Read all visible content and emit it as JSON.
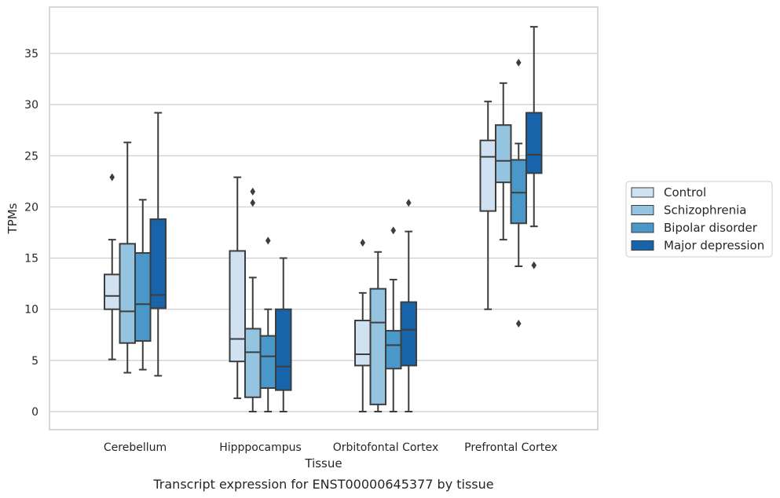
{
  "chart_data": {
    "type": "box",
    "caption": "Transcript expression for ENST00000645377 by tissue",
    "xlabel": "Tissue",
    "ylabel": "TPMs",
    "ylim": [
      -1.8,
      39.5
    ],
    "yticks": [
      0,
      5,
      10,
      15,
      20,
      25,
      30,
      35
    ],
    "grid": true,
    "legend_position": "right",
    "categories": [
      "Cerebellum",
      "Hipppocampus",
      "Orbitofontal Cortex",
      "Prefrontal Cortex"
    ],
    "series": [
      {
        "name": "Control",
        "color": "#d0e1f2",
        "boxes": [
          {
            "whisker_low": 5.1,
            "q1": 10.0,
            "median": 11.3,
            "q3": 13.4,
            "whisker_high": 16.8,
            "outliers": [
              22.9
            ]
          },
          {
            "whisker_low": 1.3,
            "q1": 4.9,
            "median": 7.1,
            "q3": 15.7,
            "whisker_high": 22.9,
            "outliers": []
          },
          {
            "whisker_low": 0.0,
            "q1": 4.5,
            "median": 5.6,
            "q3": 8.9,
            "whisker_high": 11.6,
            "outliers": [
              16.5
            ]
          },
          {
            "whisker_low": 10.0,
            "q1": 19.6,
            "median": 24.9,
            "q3": 26.5,
            "whisker_high": 30.3,
            "outliers": []
          }
        ]
      },
      {
        "name": "Schizophrenia",
        "color": "#94c4df",
        "boxes": [
          {
            "whisker_low": 3.8,
            "q1": 6.7,
            "median": 9.8,
            "q3": 16.4,
            "whisker_high": 26.3,
            "outliers": []
          },
          {
            "whisker_low": 0.0,
            "q1": 1.4,
            "median": 5.8,
            "q3": 8.1,
            "whisker_high": 13.1,
            "outliers": [
              20.4,
              21.5
            ]
          },
          {
            "whisker_low": 0.0,
            "q1": 0.7,
            "median": 8.7,
            "q3": 12.0,
            "whisker_high": 15.6,
            "outliers": []
          },
          {
            "whisker_low": 16.8,
            "q1": 22.4,
            "median": 24.5,
            "q3": 28.0,
            "whisker_high": 32.1,
            "outliers": []
          }
        ]
      },
      {
        "name": "Bipolar disorder",
        "color": "#4a98c9",
        "boxes": [
          {
            "whisker_low": 4.1,
            "q1": 6.9,
            "median": 10.5,
            "q3": 15.5,
            "whisker_high": 20.7,
            "outliers": []
          },
          {
            "whisker_low": 0.0,
            "q1": 2.3,
            "median": 5.4,
            "q3": 7.4,
            "whisker_high": 10.0,
            "outliers": [
              16.7
            ]
          },
          {
            "whisker_low": 0.0,
            "q1": 4.2,
            "median": 6.5,
            "q3": 7.9,
            "whisker_high": 12.9,
            "outliers": [
              17.7
            ]
          },
          {
            "whisker_low": 14.2,
            "q1": 18.4,
            "median": 21.4,
            "q3": 24.6,
            "whisker_high": 26.2,
            "outliers": [
              8.6,
              34.1
            ]
          }
        ]
      },
      {
        "name": "Major depression",
        "color": "#1764ab",
        "boxes": [
          {
            "whisker_low": 3.5,
            "q1": 10.1,
            "median": 11.4,
            "q3": 18.8,
            "whisker_high": 29.2,
            "outliers": []
          },
          {
            "whisker_low": 0.0,
            "q1": 2.1,
            "median": 4.4,
            "q3": 10.0,
            "whisker_high": 15.0,
            "outliers": []
          },
          {
            "whisker_low": 0.0,
            "q1": 4.5,
            "median": 8.0,
            "q3": 10.7,
            "whisker_high": 17.6,
            "outliers": [
              20.4
            ]
          },
          {
            "whisker_low": 18.1,
            "q1": 23.3,
            "median": 25.1,
            "q3": 29.2,
            "whisker_high": 37.6,
            "outliers": [
              14.3
            ]
          }
        ]
      }
    ]
  }
}
